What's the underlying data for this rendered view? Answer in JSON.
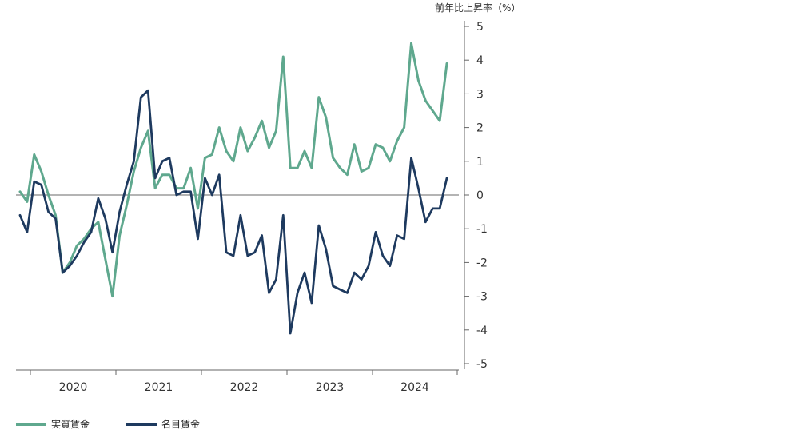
{
  "chart_data": {
    "type": "line",
    "ylabel": "前年比上昇率（%）",
    "ylim": [
      -5,
      5
    ],
    "yticks": [
      "5",
      "4",
      "3",
      "2",
      "1",
      "0",
      "-1",
      "-2",
      "-3",
      "-4",
      "-5"
    ],
    "x_tick_labels": [
      "2020",
      "2021",
      "2022",
      "2023",
      "2024"
    ],
    "x_start": "2019-12",
    "series": [
      {
        "name": "実質賃金",
        "color": "#5fa88e",
        "values": [
          0.1,
          -0.2,
          1.2,
          0.7,
          0.0,
          -0.6,
          -2.3,
          -2.0,
          -1.5,
          -1.3,
          -1.0,
          -0.8,
          -1.9,
          -3.0,
          -1.2,
          -0.3,
          0.7,
          1.4,
          1.9,
          0.2,
          0.6,
          0.6,
          0.2,
          0.2,
          0.8,
          -0.4,
          1.1,
          1.2,
          2.0,
          1.3,
          1.0,
          2.0,
          1.3,
          1.7,
          2.2,
          1.4,
          1.9,
          4.1,
          0.8,
          0.8,
          1.3,
          0.8,
          2.9,
          2.3,
          1.1,
          0.8,
          0.6,
          1.5,
          0.7,
          0.8,
          1.5,
          1.4,
          1.0,
          1.6,
          2.0,
          4.5,
          3.4,
          2.8,
          2.5,
          2.2,
          3.9
        ]
      },
      {
        "name": "名目賃金",
        "color": "#1e3a5f",
        "values": [
          -0.6,
          -1.1,
          0.4,
          0.3,
          -0.5,
          -0.7,
          -2.3,
          -2.1,
          -1.8,
          -1.4,
          -1.1,
          -0.1,
          -0.7,
          -1.7,
          -0.5,
          0.3,
          1.0,
          2.9,
          3.1,
          0.5,
          1.0,
          1.1,
          0.0,
          0.1,
          0.1,
          -1.3,
          0.5,
          0.0,
          0.6,
          -1.7,
          -1.8,
          -0.6,
          -1.8,
          -1.7,
          -1.2,
          -2.9,
          -2.5,
          -0.6,
          -4.1,
          -2.9,
          -2.3,
          -3.2,
          -0.9,
          -1.6,
          -2.7,
          -2.8,
          -2.9,
          -2.3,
          -2.5,
          -2.1,
          -1.1,
          -1.8,
          -2.1,
          -1.2,
          -1.3,
          1.1,
          0.2,
          -0.8,
          -0.4,
          -0.4,
          0.5
        ]
      }
    ],
    "legend_position": "bottom-left",
    "grid": false
  }
}
